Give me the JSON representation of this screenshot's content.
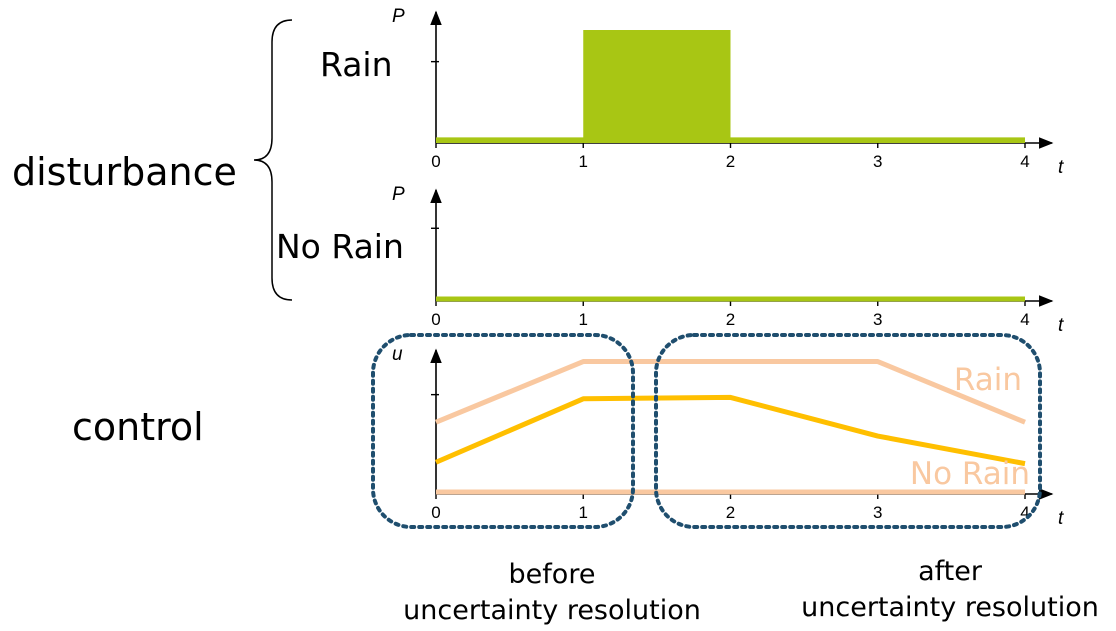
{
  "labels": {
    "disturbance": "disturbance",
    "control": "control",
    "rain": "Rain",
    "no_rain": "No Rain",
    "before_line1": "before",
    "before_line2": "uncertainty resolution",
    "after_line1": "after",
    "after_line2": "uncertainty resolution"
  },
  "colors": {
    "disturbance": "#a8c614",
    "control_rain": "#f9c8a0",
    "control_mean": "#ffbf00",
    "region_border": "#1f4e6e",
    "axis": "#000000"
  },
  "chart_data": [
    {
      "type": "bar",
      "panel": "Rain",
      "ylabel": "P",
      "xlabel": "t",
      "x_ticks": [
        "0",
        "1",
        "2",
        "3",
        "4"
      ],
      "xlim": [
        0,
        4
      ],
      "ylim": [
        0,
        1
      ],
      "series": [
        {
          "x": [
            0,
            1,
            1,
            2,
            2,
            4
          ],
          "y": [
            0.05,
            0.05,
            1,
            1,
            0.05,
            0.05
          ]
        }
      ]
    },
    {
      "type": "line",
      "panel": "No Rain",
      "ylabel": "P",
      "xlabel": "t",
      "x_ticks": [
        "0",
        "1",
        "2",
        "3",
        "4"
      ],
      "xlim": [
        0,
        4
      ],
      "ylim": [
        0,
        1
      ],
      "series": [
        {
          "x": [
            0,
            4
          ],
          "y": [
            0,
            0
          ]
        }
      ]
    },
    {
      "type": "line",
      "panel": "control",
      "ylabel": "u",
      "xlabel": "t",
      "x_ticks": [
        "0",
        "1",
        "2",
        "3",
        "4"
      ],
      "xlim": [
        0,
        4
      ],
      "ylim": [
        0,
        1
      ],
      "series": [
        {
          "name": "Rain",
          "x": [
            0,
            1,
            3,
            4
          ],
          "y": [
            0.52,
            0.96,
            0.96,
            0.52
          ]
        },
        {
          "x": [
            0,
            1,
            2,
            3,
            4
          ],
          "y": [
            0.23,
            0.69,
            0.7,
            0.42,
            0.22
          ]
        },
        {
          "name": "No Rain",
          "x": [
            0,
            4
          ],
          "y": [
            0,
            0
          ]
        }
      ]
    }
  ]
}
